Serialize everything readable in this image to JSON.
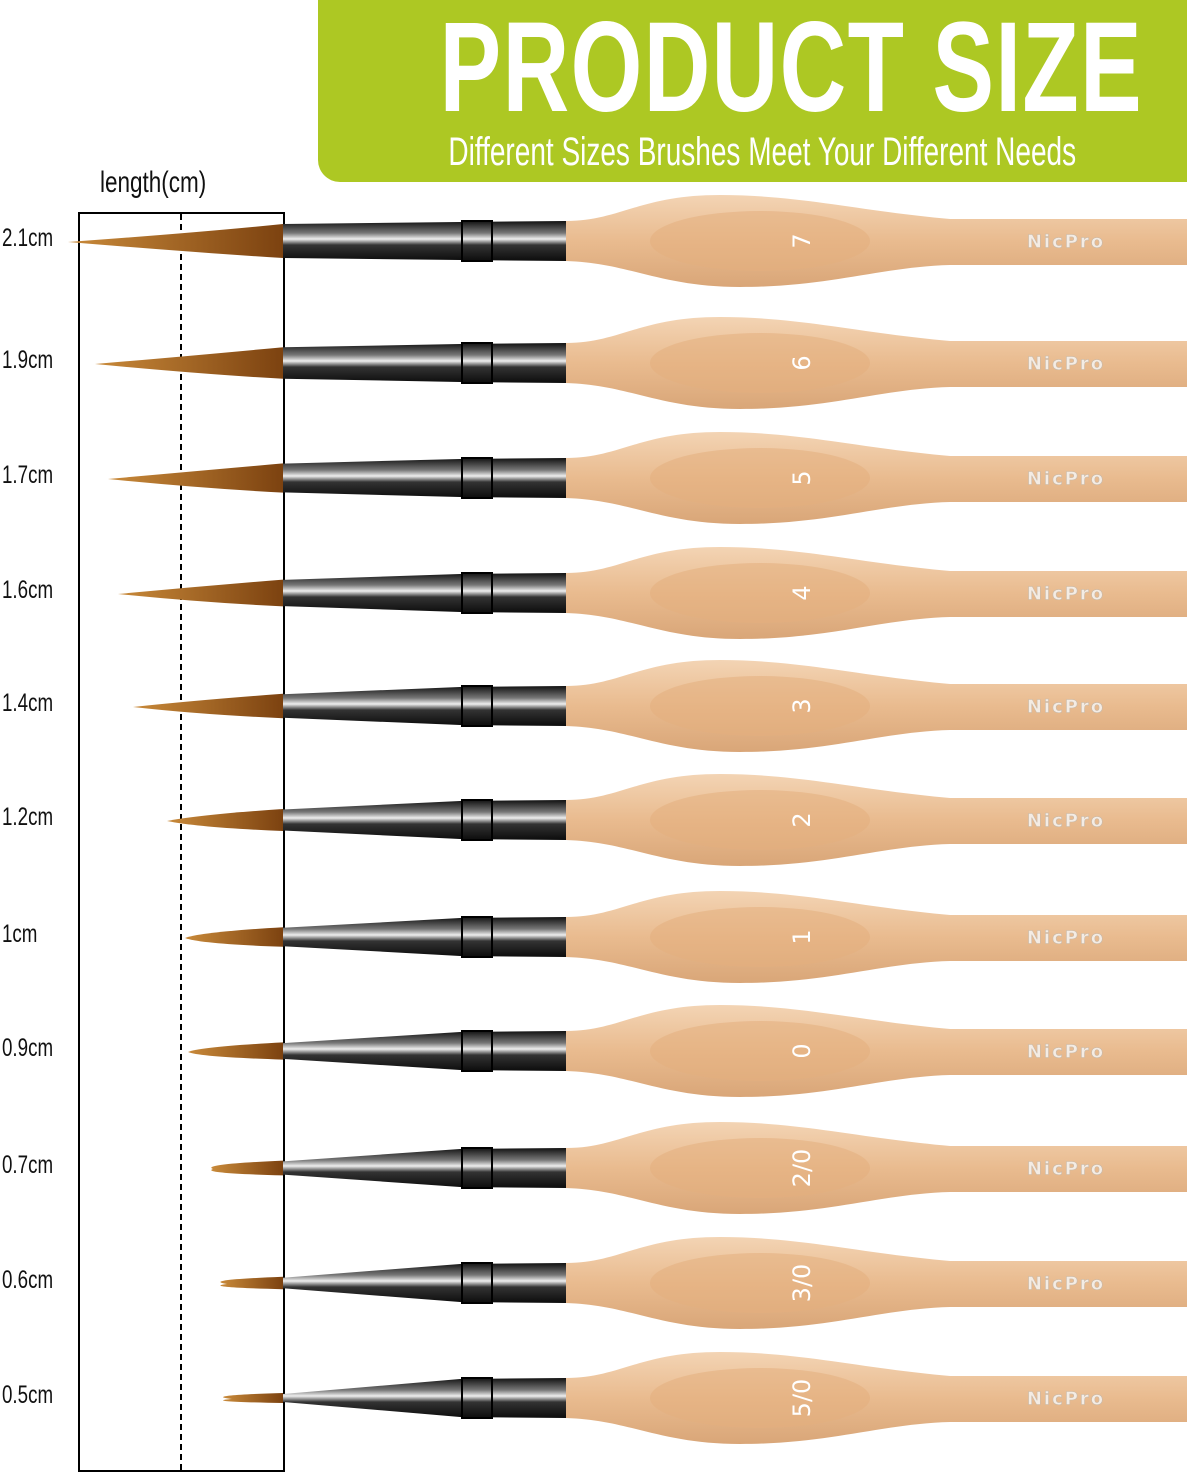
{
  "banner": {
    "title": "PRODUCT SIZE",
    "subtitle": "Different Sizes Brushes Meet Your Different Needs",
    "color": "#adc823"
  },
  "length_label": "length(cm)",
  "brand": "NicPro",
  "colors": {
    "bristle": "#9a5a12",
    "ferrule": "#2a2a2e",
    "handle": "#e6b98e"
  },
  "brushes": [
    {
      "length": "2.1cm",
      "size": "7"
    },
    {
      "length": "1.9cm",
      "size": "6"
    },
    {
      "length": "1.7cm",
      "size": "5"
    },
    {
      "length": "1.6cm",
      "size": "4"
    },
    {
      "length": "1.4cm",
      "size": "3"
    },
    {
      "length": "1.2cm",
      "size": "2"
    },
    {
      "length": "1cm",
      "size": "1"
    },
    {
      "length": "0.9cm",
      "size": "0"
    },
    {
      "length": "0.7cm",
      "size": "2/0"
    },
    {
      "length": "0.6cm",
      "size": "3/0"
    },
    {
      "length": "0.5cm",
      "size": "5/0"
    }
  ]
}
